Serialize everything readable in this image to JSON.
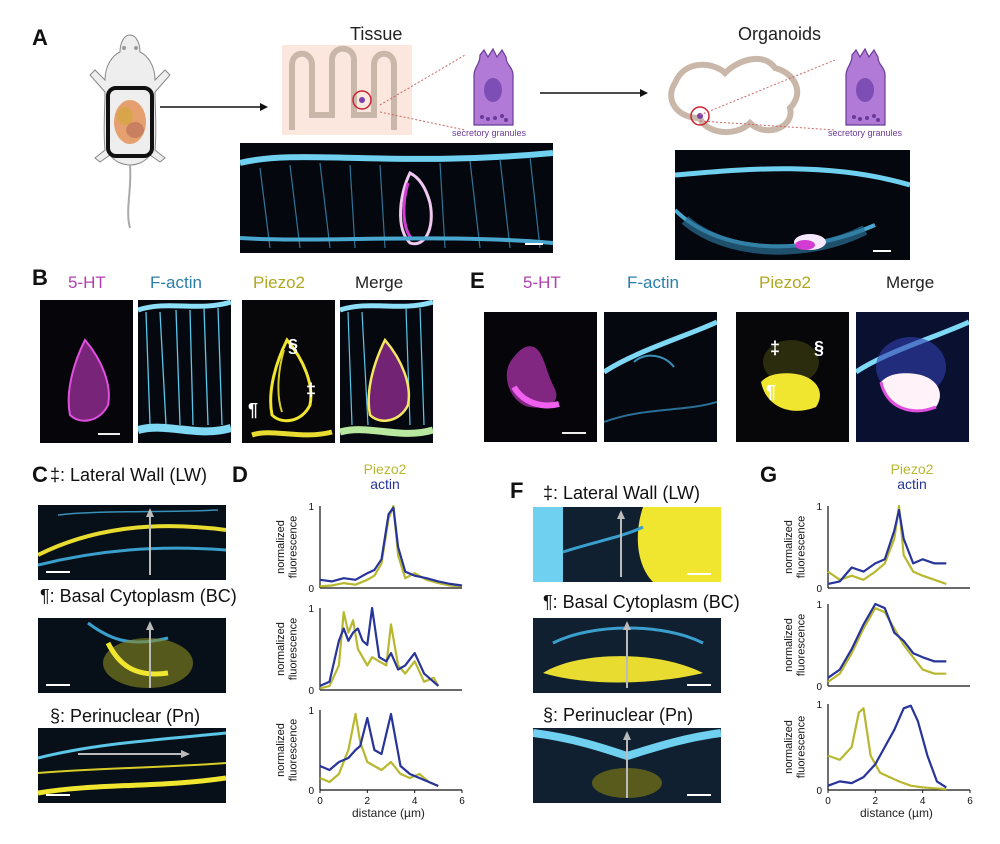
{
  "figure": {
    "panel_letters": [
      "A",
      "B",
      "C",
      "D",
      "E",
      "F",
      "G"
    ],
    "panel_a": {
      "tissue_title": "Tissue",
      "organoids_title": "Organoids",
      "granules_label_tissue": "secretory granules",
      "granules_label_organoid": "secretory granules"
    },
    "panel_b": {
      "labels": [
        "5-HT",
        "F-actin",
        "Piezo2",
        "Merge"
      ],
      "symbols": [
        "§",
        "‡",
        "¶"
      ]
    },
    "panel_e": {
      "labels": [
        "5-HT",
        "F-actin",
        "Piezo2",
        "Merge"
      ],
      "symbols": [
        "‡",
        "§",
        "¶"
      ]
    },
    "panel_c": {
      "titles": [
        "‡: Lateral Wall (LW)",
        "¶: Basal Cytoplasm (BC)",
        "§: Perinuclear (Pn)"
      ]
    },
    "panel_f": {
      "titles": [
        "‡: Lateral Wall (LW)",
        "¶: Basal Cytoplasm (BC)",
        "§: Perinuclear (Pn)"
      ]
    },
    "legend": {
      "piezo2": "Piezo2",
      "actin": "actin"
    },
    "ylabel_line1": "normalized",
    "ylabel_line2": "fluorescence",
    "xlabel": "distance (µm)",
    "colors": {
      "piezo2": "#b8b830",
      "actin": "#27349a",
      "magenta": "#d23cd2",
      "cyan": "#5cc6e8",
      "yellow": "#f0e630"
    }
  },
  "chart_data": [
    {
      "type": "line",
      "panel": "D",
      "row": "Lateral Wall",
      "xlim": [
        0,
        6
      ],
      "ylim": [
        0,
        1
      ],
      "yticks": [
        0,
        1
      ],
      "series": [
        {
          "name": "Piezo2",
          "x": [
            0,
            0.5,
            1,
            1.5,
            2,
            2.3,
            2.6,
            2.9,
            3.1,
            3.3,
            3.6,
            4,
            4.5,
            5,
            5.5,
            6
          ],
          "values": [
            0.02,
            0.03,
            0.06,
            0.04,
            0.1,
            0.15,
            0.3,
            0.85,
            1.0,
            0.4,
            0.12,
            0.18,
            0.1,
            0.06,
            0.03,
            0.02
          ]
        },
        {
          "name": "actin",
          "x": [
            0,
            0.5,
            1,
            1.5,
            2,
            2.3,
            2.6,
            2.9,
            3.1,
            3.3,
            3.6,
            4,
            4.5,
            5,
            5.5,
            6
          ],
          "values": [
            0.1,
            0.08,
            0.12,
            0.1,
            0.18,
            0.22,
            0.35,
            0.9,
            0.98,
            0.5,
            0.2,
            0.15,
            0.12,
            0.08,
            0.05,
            0.03
          ]
        }
      ]
    },
    {
      "type": "line",
      "panel": "D",
      "row": "Basal Cytoplasm",
      "xlim": [
        0,
        6
      ],
      "ylim": [
        0,
        1
      ],
      "yticks": [
        0,
        1
      ],
      "series": [
        {
          "name": "Piezo2",
          "x": [
            0,
            0.4,
            0.8,
            1,
            1.2,
            1.4,
            1.6,
            1.8,
            2,
            2.2,
            2.5,
            2.8,
            3,
            3.3,
            3.6,
            4,
            4.4,
            4.8,
            5
          ],
          "values": [
            0.02,
            0.05,
            0.3,
            0.95,
            0.7,
            0.85,
            0.5,
            0.4,
            0.3,
            0.4,
            0.35,
            0.3,
            0.8,
            0.3,
            0.2,
            0.35,
            0.1,
            0.15,
            0.05
          ]
        },
        {
          "name": "actin",
          "x": [
            0,
            0.4,
            0.8,
            1,
            1.2,
            1.4,
            1.6,
            1.8,
            2,
            2.2,
            2.5,
            2.8,
            3,
            3.3,
            3.6,
            4,
            4.4,
            4.8,
            5
          ],
          "values": [
            0.05,
            0.1,
            0.6,
            0.75,
            0.6,
            0.7,
            0.75,
            0.6,
            0.55,
            1.0,
            0.4,
            0.35,
            0.45,
            0.25,
            0.3,
            0.45,
            0.2,
            0.1,
            0.05
          ]
        }
      ]
    },
    {
      "type": "line",
      "panel": "D",
      "row": "Perinuclear",
      "xlim": [
        0,
        6
      ],
      "ylim": [
        0,
        1
      ],
      "xticks": [
        0,
        2,
        4,
        6
      ],
      "yticks": [
        0,
        1
      ],
      "series": [
        {
          "name": "Piezo2",
          "x": [
            0,
            0.4,
            0.8,
            1.2,
            1.5,
            1.7,
            2,
            2.3,
            2.6,
            3,
            3.4,
            3.8,
            4.2,
            4.6,
            5
          ],
          "values": [
            0.15,
            0.1,
            0.2,
            0.5,
            0.95,
            0.6,
            0.35,
            0.3,
            0.25,
            0.35,
            0.2,
            0.15,
            0.2,
            0.1,
            0.05
          ]
        },
        {
          "name": "actin",
          "x": [
            0,
            0.4,
            0.8,
            1.2,
            1.5,
            1.7,
            2,
            2.3,
            2.6,
            3,
            3.4,
            3.8,
            4.2,
            4.6,
            5
          ],
          "values": [
            0.3,
            0.25,
            0.35,
            0.4,
            0.5,
            0.55,
            0.9,
            0.5,
            0.45,
            0.95,
            0.3,
            0.2,
            0.15,
            0.1,
            0.05
          ]
        }
      ]
    },
    {
      "type": "line",
      "panel": "G",
      "row": "Lateral Wall",
      "xlim": [
        0,
        6
      ],
      "ylim": [
        0,
        1
      ],
      "yticks": [
        0,
        1
      ],
      "series": [
        {
          "name": "Piezo2",
          "x": [
            0,
            0.5,
            1,
            1.5,
            2,
            2.4,
            2.8,
            3,
            3.2,
            3.6,
            4,
            4.5,
            5
          ],
          "values": [
            0.2,
            0.1,
            0.15,
            0.1,
            0.2,
            0.3,
            0.6,
            1.0,
            0.4,
            0.2,
            0.15,
            0.1,
            0.05
          ]
        },
        {
          "name": "actin",
          "x": [
            0,
            0.5,
            1,
            1.5,
            2,
            2.4,
            2.8,
            3,
            3.2,
            3.6,
            4,
            4.5,
            5
          ],
          "values": [
            0.05,
            0.08,
            0.25,
            0.2,
            0.3,
            0.35,
            0.7,
            0.95,
            0.6,
            0.3,
            0.35,
            0.3,
            0.3
          ]
        }
      ]
    },
    {
      "type": "line",
      "panel": "G",
      "row": "Basal Cytoplasm",
      "xlim": [
        0,
        6
      ],
      "ylim": [
        0,
        1
      ],
      "yticks": [
        0,
        1
      ],
      "series": [
        {
          "name": "Piezo2",
          "x": [
            0,
            0.5,
            1,
            1.5,
            2,
            2.4,
            2.8,
            3.2,
            3.6,
            4,
            4.5,
            5
          ],
          "values": [
            0.05,
            0.15,
            0.4,
            0.7,
            0.95,
            0.9,
            0.7,
            0.5,
            0.35,
            0.2,
            0.15,
            0.15
          ]
        },
        {
          "name": "actin",
          "x": [
            0,
            0.5,
            1,
            1.5,
            2,
            2.4,
            2.8,
            3.2,
            3.6,
            4,
            4.5,
            5
          ],
          "values": [
            0.1,
            0.2,
            0.45,
            0.75,
            1.0,
            0.95,
            0.65,
            0.55,
            0.4,
            0.35,
            0.3,
            0.3
          ]
        }
      ]
    },
    {
      "type": "line",
      "panel": "G",
      "row": "Perinuclear",
      "xlim": [
        0,
        6
      ],
      "ylim": [
        0,
        1
      ],
      "xticks": [
        0,
        2,
        4,
        6
      ],
      "yticks": [
        0,
        1
      ],
      "series": [
        {
          "name": "Piezo2",
          "x": [
            0,
            0.5,
            1,
            1.3,
            1.5,
            1.8,
            2.2,
            2.6,
            3,
            3.5,
            4,
            4.5,
            5
          ],
          "values": [
            0.4,
            0.35,
            0.5,
            0.9,
            0.95,
            0.4,
            0.2,
            0.15,
            0.1,
            0.05,
            0.03,
            0.02,
            0.01
          ]
        },
        {
          "name": "actin",
          "x": [
            0,
            0.5,
            1,
            1.5,
            2,
            2.4,
            2.8,
            3.2,
            3.5,
            3.8,
            4.2,
            4.6,
            5
          ],
          "values": [
            0.05,
            0.1,
            0.08,
            0.15,
            0.3,
            0.5,
            0.7,
            0.95,
            0.98,
            0.8,
            0.4,
            0.1,
            0.03
          ]
        }
      ]
    }
  ]
}
